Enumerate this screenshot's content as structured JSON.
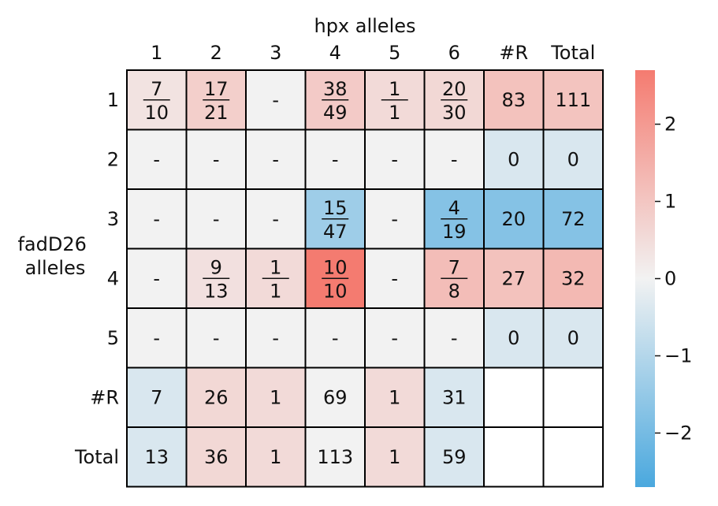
{
  "chart_data": {
    "type": "heatmap",
    "title": "hpx alleles",
    "ylabel_lines": [
      "fadD26",
      "alleles"
    ],
    "col_labels": [
      "1",
      "2",
      "3",
      "4",
      "5",
      "6",
      "#R",
      "Total"
    ],
    "row_labels": [
      "1",
      "2",
      "3",
      "4",
      "5",
      "#R",
      "Total"
    ],
    "cells": [
      [
        {
          "num": "7",
          "den": "10",
          "v": 0.35
        },
        {
          "num": "17",
          "den": "21",
          "v": 0.8
        },
        {
          "text": "-",
          "v": 0
        },
        {
          "num": "38",
          "den": "49",
          "v": 0.9
        },
        {
          "num": "1",
          "den": "1",
          "v": 0.55
        },
        {
          "num": "20",
          "den": "30",
          "v": 0.6
        },
        {
          "text": "83",
          "v": 1.1
        },
        {
          "text": "111",
          "v": 1.05
        }
      ],
      [
        {
          "text": "-",
          "v": 0
        },
        {
          "text": "-",
          "v": 0
        },
        {
          "text": "-",
          "v": 0
        },
        {
          "text": "-",
          "v": 0
        },
        {
          "text": "-",
          "v": 0
        },
        {
          "text": "-",
          "v": 0
        },
        {
          "text": "0",
          "v": -0.4
        },
        {
          "text": "0",
          "v": -0.4
        }
      ],
      [
        {
          "text": "-",
          "v": 0
        },
        {
          "text": "-",
          "v": 0
        },
        {
          "text": "-",
          "v": 0
        },
        {
          "num": "15",
          "den": "47",
          "v": -1.35
        },
        {
          "text": "-",
          "v": 0
        },
        {
          "num": "4",
          "den": "19",
          "v": -1.75
        },
        {
          "text": "20",
          "v": -1.75
        },
        {
          "text": "72",
          "v": -1.75
        }
      ],
      [
        {
          "text": "-",
          "v": 0
        },
        {
          "num": "9",
          "den": "13",
          "v": 0.4
        },
        {
          "num": "1",
          "den": "1",
          "v": 0.55
        },
        {
          "num": "10",
          "den": "10",
          "v": 2.7
        },
        {
          "text": "-",
          "v": 0
        },
        {
          "num": "7",
          "den": "8",
          "v": 1.2
        },
        {
          "text": "27",
          "v": 1.1
        },
        {
          "text": "32",
          "v": 1.3
        }
      ],
      [
        {
          "text": "-",
          "v": 0
        },
        {
          "text": "-",
          "v": 0
        },
        {
          "text": "-",
          "v": 0
        },
        {
          "text": "-",
          "v": 0
        },
        {
          "text": "-",
          "v": 0
        },
        {
          "text": "-",
          "v": 0
        },
        {
          "text": "0",
          "v": -0.4
        },
        {
          "text": "0",
          "v": -0.4
        }
      ],
      [
        {
          "text": "7",
          "v": -0.4
        },
        {
          "text": "26",
          "v": 0.6
        },
        {
          "text": "1",
          "v": 0.55
        },
        {
          "text": "69",
          "v": 0
        },
        {
          "text": "1",
          "v": 0.55
        },
        {
          "text": "31",
          "v": -0.4
        },
        {
          "text": "",
          "v": null
        },
        {
          "text": "",
          "v": null
        }
      ],
      [
        {
          "text": "13",
          "v": -0.4
        },
        {
          "text": "36",
          "v": 0.6
        },
        {
          "text": "1",
          "v": 0.55
        },
        {
          "text": "113",
          "v": 0
        },
        {
          "text": "1",
          "v": 0.55
        },
        {
          "text": "59",
          "v": -0.4
        },
        {
          "text": "",
          "v": null
        },
        {
          "text": "",
          "v": null
        }
      ]
    ],
    "colorbar": {
      "min": -2.7,
      "max": 2.7,
      "ticks": [
        -2,
        -1,
        0,
        1,
        2
      ],
      "tick_labels": [
        "−2",
        "−1",
        "0",
        "1",
        "2"
      ]
    },
    "colors": {
      "negative": "#4aa8de",
      "neutral": "#f2f2f2",
      "positive": "#f47b70",
      "empty": "#ffffff",
      "grid": "#000000"
    }
  }
}
